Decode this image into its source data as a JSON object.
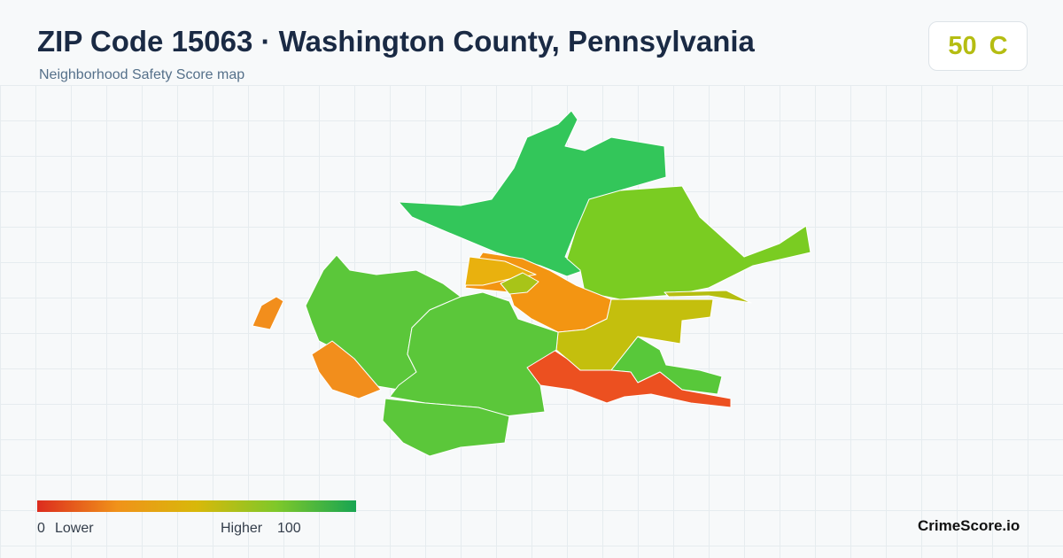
{
  "header": {
    "title": "ZIP Code 15063 · Washington County, Pennsylvania",
    "subtitle": "Neighborhood Safety Score map"
  },
  "badge": {
    "score": 50,
    "grade": "C"
  },
  "legend": {
    "min": 0,
    "min_label": "Lower",
    "max_label": "Higher",
    "max": 100
  },
  "footer": {
    "brand": "CrimeScore.io"
  }
}
